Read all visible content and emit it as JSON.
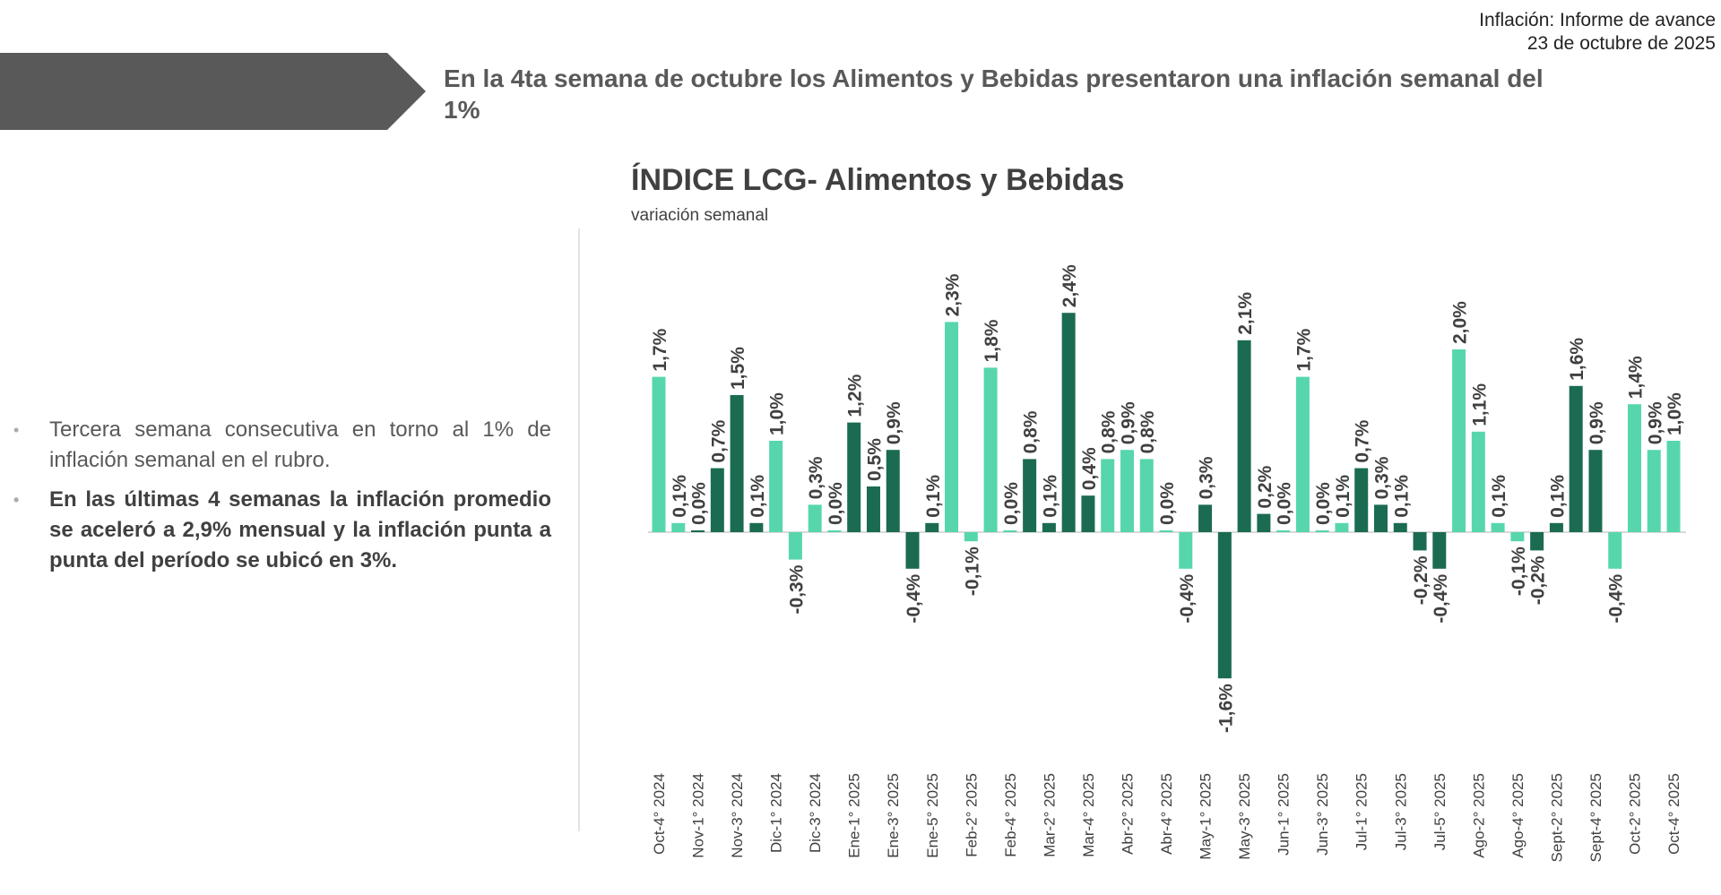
{
  "header": {
    "report_title": "Inflación: Informe de avance",
    "report_date": "23 de octubre de 2025"
  },
  "headline": "En la 4ta semana de octubre los Alimentos y Bebidas presentaron una inflación semanal del 1%",
  "bullets": [
    "Tercera semana consecutiva en torno al 1% de inflación semanal en el rubro.",
    "En las últimas 4 semanas la inflación promedio se aceleró a 2,9% mensual y la inflación punta a punta del período se ubicó en 3%."
  ],
  "colors": {
    "banner": "#595959",
    "light": "#57d6ae",
    "dark": "#1a6b52"
  },
  "chart_data": {
    "type": "bar",
    "title": "ÍNDICE LCG- Alimentos y Bebidas",
    "subtitle": "variación semanal",
    "xlabel": "",
    "ylabel": "",
    "ylim": [
      -1.6,
      2.4
    ],
    "grid": false,
    "tick_labels": [
      "Oct-4° 2024",
      "Nov-1° 2024",
      "Nov-3° 2024",
      "Dic-1° 2024",
      "Dic-3° 2024",
      "Ene-1° 2025",
      "Ene-3° 2025",
      "Ene-5° 2025",
      "Feb-2° 2025",
      "Feb-4° 2025",
      "Mar-2° 2025",
      "Mar-4° 2025",
      "Abr-2° 2025",
      "Abr-4° 2025",
      "May-1° 2025",
      "May-3° 2025",
      "Jun-1° 2025",
      "Jun-3° 2025",
      "Jul-1° 2025",
      "Jul-3° 2025",
      "Jul-5° 2025",
      "Ago-2° 2025",
      "Ago-4° 2025",
      "Sept-2° 2025",
      "Sept-4° 2025",
      "Oct-2° 2025",
      "Oct-4° 2025"
    ],
    "values": [
      1.7,
      0.1,
      0.0,
      0.7,
      1.5,
      0.1,
      1.0,
      -0.3,
      0.3,
      0.0,
      1.2,
      0.5,
      0.9,
      -0.4,
      0.1,
      2.3,
      -0.1,
      1.8,
      0.0,
      0.8,
      0.1,
      2.4,
      0.4,
      0.8,
      0.9,
      0.8,
      0.0,
      -0.4,
      0.3,
      -1.6,
      2.1,
      0.2,
      0.0,
      1.7,
      0.0,
      0.1,
      0.7,
      0.3,
      0.1,
      -0.2,
      -0.4,
      2.0,
      1.1,
      0.1,
      -0.1,
      -0.2,
      0.1,
      1.6,
      0.9,
      -0.4,
      1.4,
      0.9,
      1.0
    ],
    "bar_color_groups": [
      "L",
      "L",
      "D",
      "D",
      "D",
      "D",
      "L",
      "L",
      "L",
      "L",
      "D",
      "D",
      "D",
      "D",
      "D",
      "L",
      "L",
      "L",
      "L",
      "D",
      "D",
      "D",
      "D",
      "L",
      "L",
      "L",
      "L",
      "L",
      "D",
      "D",
      "D",
      "D",
      "L",
      "L",
      "L",
      "L",
      "D",
      "D",
      "D",
      "D",
      "D",
      "L",
      "L",
      "L",
      "L",
      "D",
      "D",
      "D",
      "D",
      "L",
      "L",
      "L",
      "L"
    ],
    "data_labels": [
      "1,7%",
      "0,1%",
      "0,0%",
      "0,7%",
      "1,5%",
      "0,1%",
      "1,0%",
      "-0,3%",
      "0,3%",
      "0,0%",
      "1,2%",
      "0,5%",
      "0,9%",
      "-0,4%",
      "0,1%",
      "2,3%",
      "-0,1%",
      "1,8%",
      "0,0%",
      "0,8%",
      "0,1%",
      "2,4%",
      "0,4%",
      "0,8%",
      "0,9%",
      "0,8%",
      "0,0%",
      "-0,4%",
      "0,3%",
      "-1,6%",
      "2,1%",
      "0,2%",
      "0,0%",
      "1,7%",
      "0,0%",
      "0,1%",
      "0,7%",
      "0,3%",
      "0,1%",
      "-0,2%",
      "-0,4%",
      "2,0%",
      "1,1%",
      "0,1%",
      "-0,1%",
      "-0,2%",
      "0,1%",
      "1,6%",
      "0,9%",
      "-0,4%",
      "1,4%",
      "0,9%",
      "1,0%"
    ]
  }
}
